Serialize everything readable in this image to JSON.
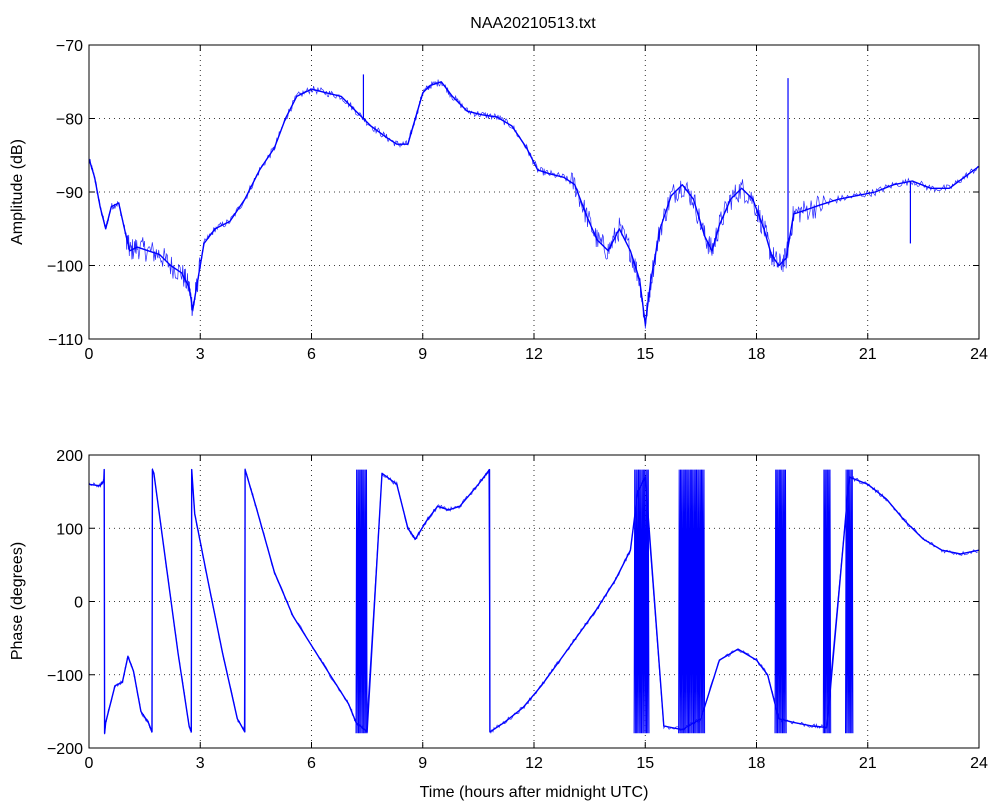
{
  "figure_title": "NAA20210513.txt",
  "chart_data": [
    {
      "type": "line",
      "title": "NAA20210513.txt",
      "xlabel": "",
      "ylabel": "Amplitude (dB)",
      "xlim": [
        0,
        24
      ],
      "ylim": [
        -110,
        -70
      ],
      "xticks": [
        0,
        3,
        6,
        9,
        12,
        15,
        18,
        21,
        24
      ],
      "yticks": [
        -110,
        -100,
        -90,
        -80,
        -70
      ],
      "grid": true,
      "line_color": "#0000ff",
      "series": [
        {
          "x": [
            0,
            0.15,
            0.3,
            0.45,
            0.6,
            0.8,
            1.0,
            1.1,
            1.3,
            1.6,
            1.9,
            2.2,
            2.5,
            2.7,
            2.8,
            2.9,
            3.1,
            3.4,
            3.8,
            4.2,
            4.6,
            5.0,
            5.3,
            5.6,
            6.0,
            6.4,
            6.8,
            7.2,
            7.6,
            8.0,
            8.3,
            8.6,
            8.8,
            9.0,
            9.2,
            9.5,
            9.8,
            10.2,
            10.6,
            11.0,
            11.4,
            11.8,
            12.1,
            12.4,
            12.8,
            13.1,
            13.4,
            13.7,
            14.0,
            14.3,
            14.6,
            14.85,
            15.0,
            15.15,
            15.4,
            15.7,
            16.0,
            16.3,
            16.6,
            16.8,
            17.0,
            17.3,
            17.6,
            17.9,
            18.2,
            18.4,
            18.6,
            18.8,
            19.0,
            19.3,
            19.7,
            20.2,
            20.7,
            21.2,
            21.7,
            22.2,
            22.7,
            23.2,
            23.6,
            24.0
          ],
          "y": [
            -85.5,
            -88,
            -92,
            -95,
            -92,
            -91.5,
            -96,
            -98,
            -97.5,
            -98,
            -98.5,
            -100,
            -101,
            -103,
            -106,
            -103,
            -97,
            -95,
            -94,
            -91,
            -87,
            -84,
            -80,
            -77,
            -76,
            -76.5,
            -77,
            -79,
            -81,
            -82.5,
            -83.5,
            -83.5,
            -80,
            -76.5,
            -75.5,
            -75,
            -77,
            -79,
            -79.5,
            -79.8,
            -81,
            -84,
            -87,
            -87.5,
            -88,
            -89,
            -93,
            -96.5,
            -98,
            -95,
            -98,
            -102,
            -108,
            -102,
            -95,
            -90.5,
            -89,
            -91,
            -96,
            -98,
            -94.5,
            -91,
            -89.5,
            -91,
            -95,
            -98.5,
            -100,
            -99,
            -93,
            -92.5,
            -91.8,
            -91,
            -90.5,
            -90,
            -89,
            -88.5,
            -89.5,
            -89.5,
            -88,
            -86.5
          ]
        }
      ],
      "annotations": [
        {
          "label": "spike",
          "x": 7.4,
          "y": -74
        },
        {
          "label": "spike",
          "x": 18.85,
          "y": -74.5
        },
        {
          "label": "dip",
          "x": 22.15,
          "y": -97
        }
      ]
    },
    {
      "type": "line",
      "title": "",
      "xlabel": "Time (hours after midnight UTC)",
      "ylabel": "Phase (degrees)",
      "xlim": [
        0,
        24
      ],
      "ylim": [
        -200,
        200
      ],
      "xticks": [
        0,
        3,
        6,
        9,
        12,
        15,
        18,
        21,
        24
      ],
      "yticks": [
        -200,
        -100,
        0,
        100,
        200
      ],
      "grid": true,
      "line_color": "#0000ff",
      "series": [
        {
          "x": [
            0,
            0.3,
            0.4,
            0.41,
            0.42,
            0.45,
            0.7,
            0.9,
            1.05,
            1.2,
            1.4,
            1.6,
            1.7,
            1.71,
            1.75,
            2.0,
            2.4,
            2.7,
            2.76,
            2.77,
            2.85,
            3.2,
            3.6,
            4.0,
            4.2,
            4.21,
            4.5,
            5.0,
            5.5,
            6.0,
            6.5,
            7.0,
            7.2,
            7.5,
            7.9,
            8.3,
            8.6,
            8.8,
            9.1,
            9.4,
            9.7,
            10.0,
            10.5,
            10.8,
            10.81,
            11.2,
            11.7,
            12.2,
            12.7,
            13.2,
            13.7,
            14.2,
            14.6,
            14.8,
            15.0,
            15.5,
            16.0,
            16.5,
            17.0,
            17.5,
            18.0,
            18.3,
            18.6,
            19.0,
            19.5,
            19.9,
            20.5,
            21.0,
            21.5,
            22.0,
            22.5,
            23.0,
            23.5,
            24.0
          ],
          "y": [
            160,
            158,
            165,
            180,
            -180,
            -165,
            -115,
            -110,
            -75,
            -95,
            -150,
            -165,
            -178,
            180,
            175,
            80,
            -70,
            -170,
            -178,
            180,
            120,
            30,
            -70,
            -160,
            -178,
            180,
            130,
            40,
            -20,
            -60,
            -100,
            -140,
            -165,
            -178,
            175,
            160,
            100,
            85,
            110,
            130,
            125,
            130,
            160,
            180,
            -178,
            -165,
            -145,
            -115,
            -80,
            -45,
            -10,
            30,
            70,
            150,
            170,
            -170,
            -175,
            -160,
            -80,
            -65,
            -80,
            -100,
            -160,
            -165,
            -170,
            -172,
            170,
            160,
            140,
            110,
            85,
            70,
            65,
            70
          ]
        }
      ],
      "annotations": [
        {
          "label": "oscillation",
          "x_range": [
            7.2,
            7.5
          ],
          "y_range": [
            -180,
            180
          ]
        },
        {
          "label": "oscillation",
          "x_range": [
            14.7,
            15.1
          ],
          "y_range": [
            -180,
            180
          ]
        },
        {
          "label": "oscillation",
          "x_range": [
            15.9,
            16.6
          ],
          "y_range": [
            -180,
            180
          ]
        },
        {
          "label": "oscillation",
          "x_range": [
            18.5,
            18.8
          ],
          "y_range": [
            -180,
            180
          ]
        },
        {
          "label": "oscillation",
          "x_range": [
            19.8,
            20.0
          ],
          "y_range": [
            -180,
            180
          ]
        },
        {
          "label": "oscillation",
          "x_range": [
            20.4,
            20.6
          ],
          "y_range": [
            -180,
            180
          ]
        }
      ]
    }
  ]
}
